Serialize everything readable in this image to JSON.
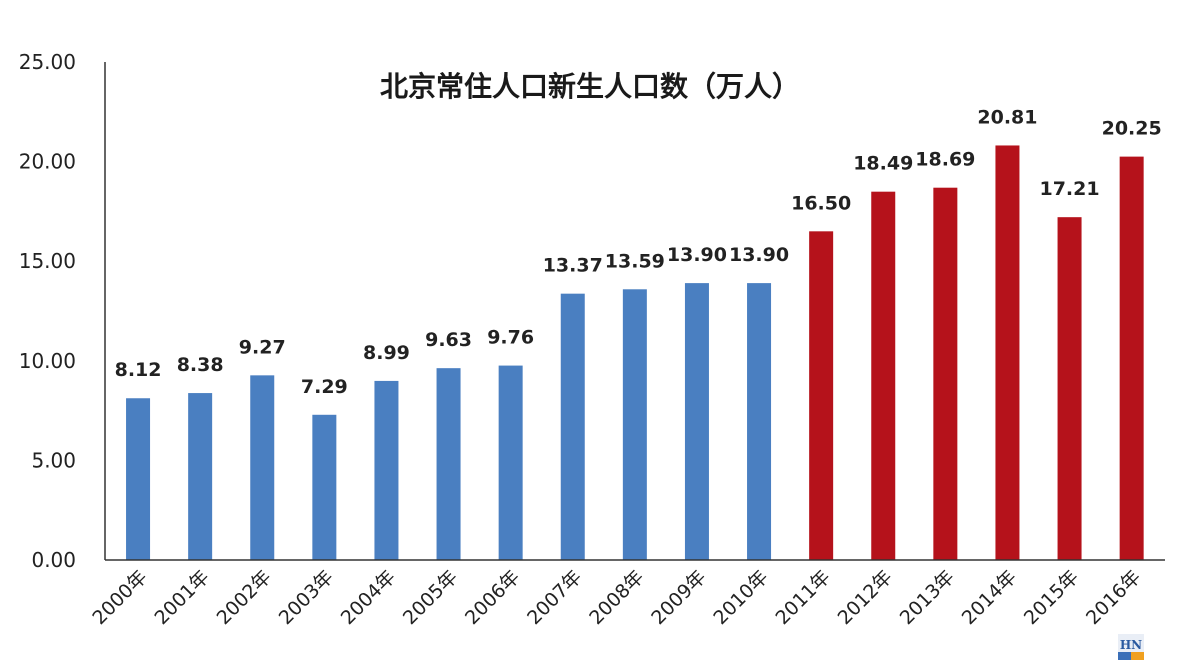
{
  "chart_data": {
    "type": "bar",
    "title": "北京常住人口新生人口数（万人）",
    "xlabel": "",
    "ylabel": "",
    "ylim": [
      0,
      25
    ],
    "yticks": [
      "0.00",
      "5.00",
      "10.00",
      "15.00",
      "20.00",
      "25.00"
    ],
    "grid": false,
    "legend": "none",
    "categories": [
      "2000年",
      "2001年",
      "2002年",
      "2003年",
      "2004年",
      "2005年",
      "2006年",
      "2007年",
      "2008年",
      "2009年",
      "2010年",
      "2011年",
      "2012年",
      "2013年",
      "2014年",
      "2015年",
      "2016年"
    ],
    "values": [
      8.12,
      8.38,
      9.27,
      7.29,
      8.99,
      9.63,
      9.76,
      13.37,
      13.59,
      13.9,
      13.9,
      16.5,
      18.49,
      18.69,
      20.81,
      17.21,
      20.25
    ],
    "value_labels": [
      "8.12",
      "8.38",
      "9.27",
      "7.29",
      "8.99",
      "9.63",
      "9.76",
      "13.37",
      "13.59",
      "13.90",
      "13.90",
      "16.50",
      "18.49",
      "18.69",
      "20.81",
      "17.21",
      "20.25"
    ],
    "bar_colors": [
      "#4a7fc1",
      "#4a7fc1",
      "#4a7fc1",
      "#4a7fc1",
      "#4a7fc1",
      "#4a7fc1",
      "#4a7fc1",
      "#4a7fc1",
      "#4a7fc1",
      "#4a7fc1",
      "#4a7fc1",
      "#b5121b",
      "#b5121b",
      "#b5121b",
      "#b5121b",
      "#b5121b",
      "#b5121b"
    ]
  },
  "watermark": {
    "text": "HN"
  }
}
